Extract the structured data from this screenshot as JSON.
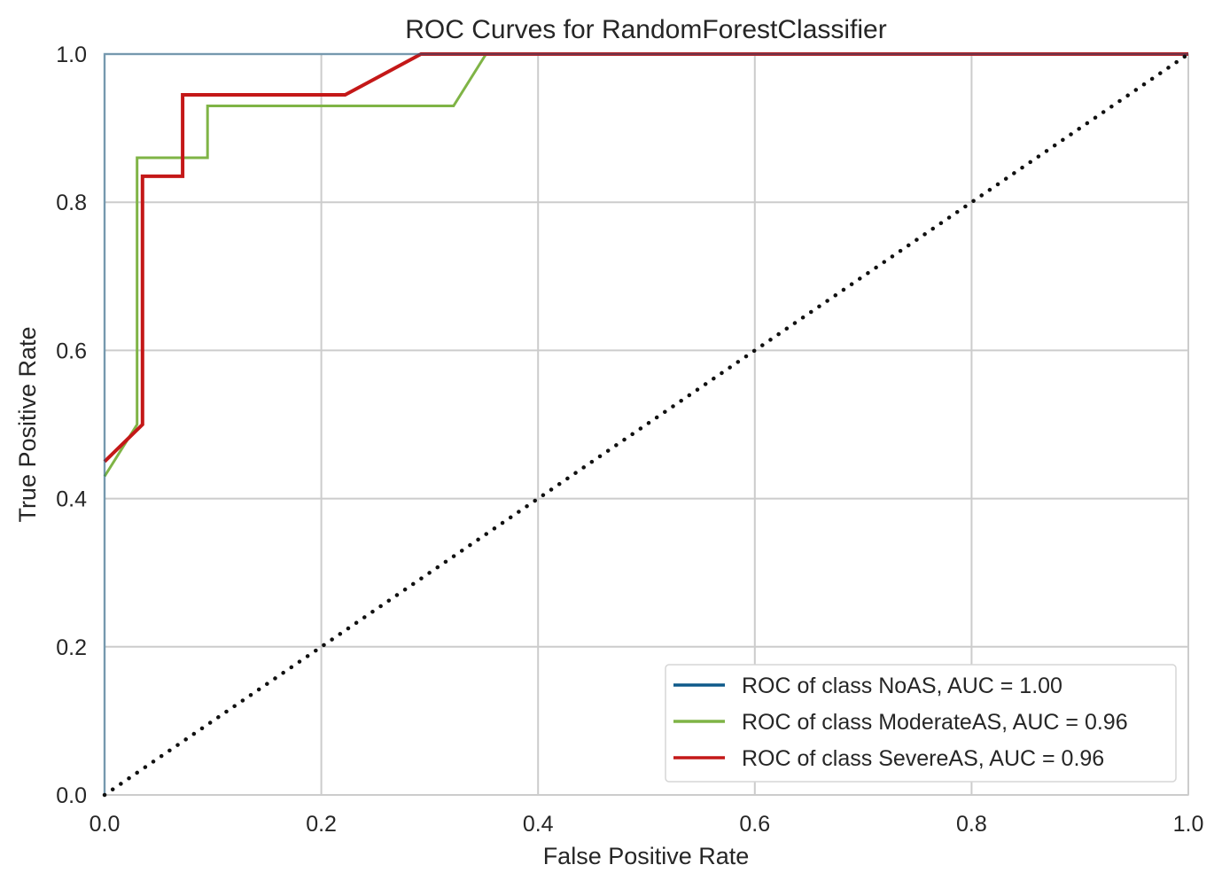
{
  "chart_data": {
    "type": "line",
    "title": "ROC Curves for RandomForestClassifier",
    "xlabel": "False Positive Rate",
    "ylabel": "True Positive Rate",
    "xlim": [
      0.0,
      1.0
    ],
    "ylim": [
      0.0,
      1.0
    ],
    "xticks": [
      "0.0",
      "0.2",
      "0.4",
      "0.6",
      "0.8",
      "1.0"
    ],
    "yticks": [
      "0.0",
      "0.2",
      "0.4",
      "0.6",
      "0.8",
      "1.0"
    ],
    "grid": true,
    "legend_position": "bottom-right",
    "series": [
      {
        "name": "ROC of class NoAS, AUC = 1.00",
        "color": "#0e5a8a",
        "x": [
          0.0,
          0.0,
          1.0
        ],
        "y": [
          0.0,
          1.0,
          1.0
        ]
      },
      {
        "name": "ROC of class ModerateAS, AUC = 0.96",
        "color": "#7fb446",
        "x": [
          0.0,
          0.03,
          0.03,
          0.095,
          0.095,
          0.322,
          0.352,
          1.0
        ],
        "y": [
          0.43,
          0.5,
          0.86,
          0.86,
          0.93,
          0.93,
          1.0,
          1.0
        ]
      },
      {
        "name": "ROC of class SevereAS, AUC = 0.96",
        "color": "#c41818",
        "x": [
          0.0,
          0.035,
          0.035,
          0.072,
          0.072,
          0.222,
          0.292,
          1.0
        ],
        "y": [
          0.45,
          0.5,
          0.835,
          0.835,
          0.945,
          0.945,
          1.0,
          1.0
        ]
      },
      {
        "name": "chance",
        "color": "#111111",
        "style": "dotted",
        "x": [
          0.0,
          1.0
        ],
        "y": [
          0.0,
          1.0
        ]
      }
    ]
  }
}
